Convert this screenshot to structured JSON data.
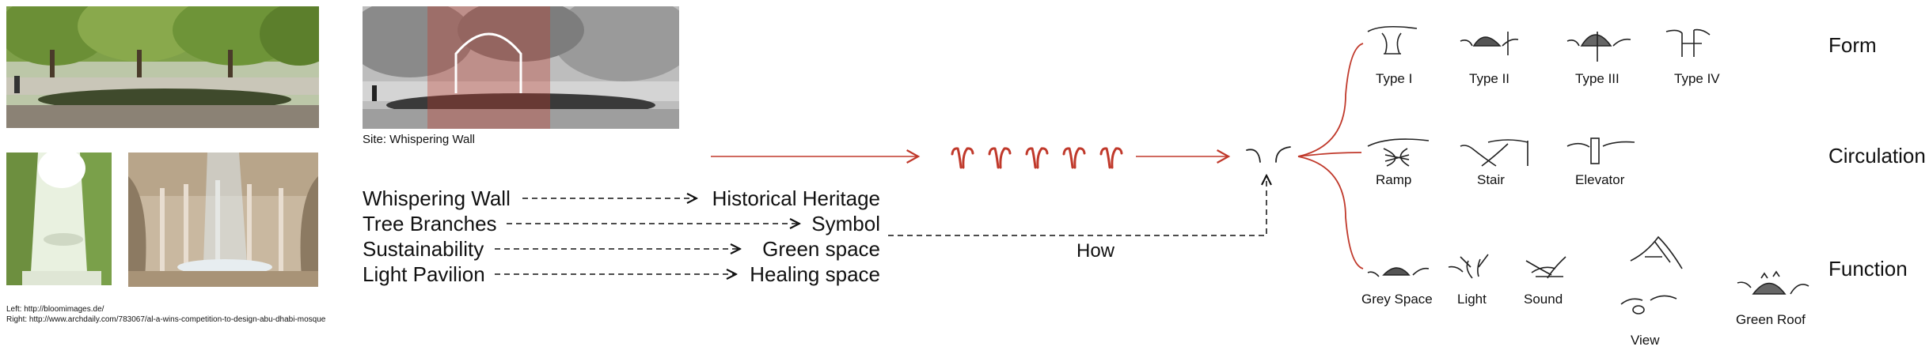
{
  "site_caption": "Site: Whispering Wall",
  "credits": {
    "left": "Left:   http://bloomimages.de/",
    "right": "Right: http://www.archdaily.com/783067/al-a-wins-competition-to-design-abu-dhabi-mosque"
  },
  "concepts": [
    {
      "from": "Whispering Wall",
      "to": "Historical Heritage"
    },
    {
      "from": "Tree Branches",
      "to": "Symbol"
    },
    {
      "from": "Sustainability",
      "to": "Green space"
    },
    {
      "from": "Light Pavilion",
      "to": "Healing space"
    }
  ],
  "how_label": "How",
  "rows": {
    "form": {
      "title": "Form",
      "items": [
        "Type I",
        "Type II",
        "Type III",
        "Type IV"
      ]
    },
    "circulation": {
      "title": "Circulation",
      "items": [
        "Ramp",
        "Stair",
        "Elevator"
      ]
    },
    "function": {
      "title": "Function",
      "items": [
        "Grey Space",
        "Light",
        "Sound",
        "View",
        "Green Roof"
      ]
    }
  },
  "colors": {
    "accent_red": "#c0392b",
    "tree_green": "#6f9a3a",
    "pavement": "#8b8275"
  }
}
